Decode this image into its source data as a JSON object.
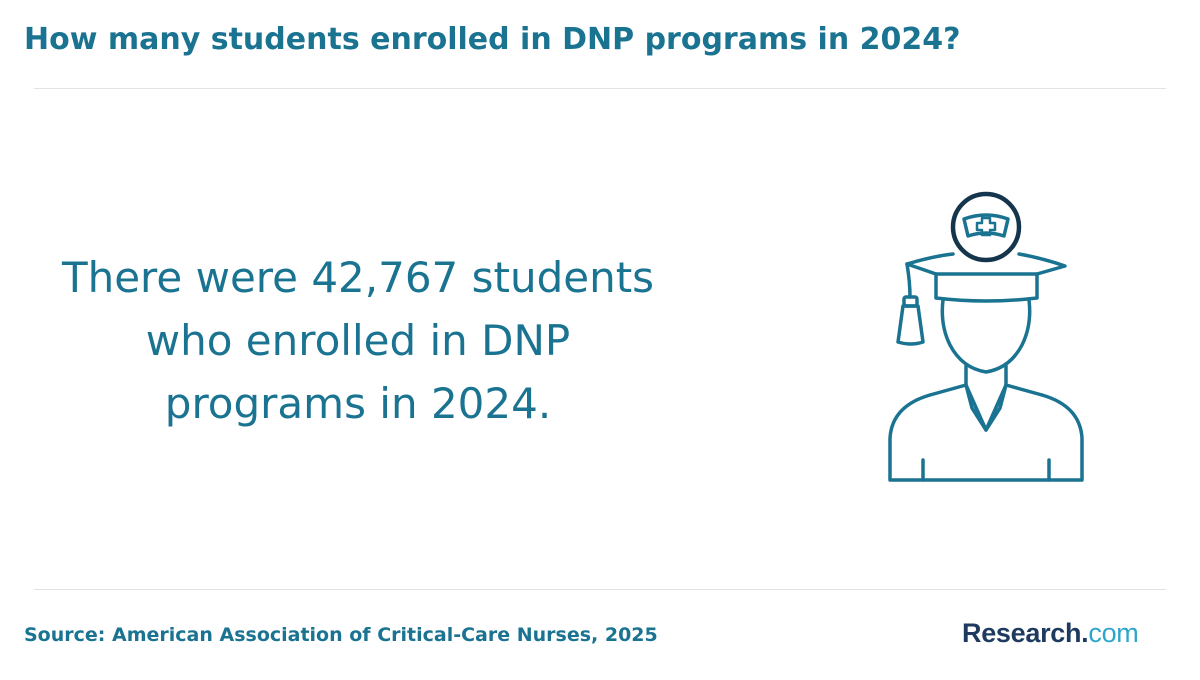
{
  "header": {
    "title": "How many students enrolled in DNP programs in 2024?"
  },
  "main": {
    "statement": "There were 42,767 students who enrolled in DNP programs in 2024.",
    "illustration_icon": "graduate-nurse-icon"
  },
  "footer": {
    "source": "Source: American Association of Critical-Care Nurses, 2025",
    "logo_main": "Research.",
    "logo_tld": "com"
  },
  "colors": {
    "accent": "#1a7391",
    "divider": "#e3e3e3",
    "logo_dark": "#1e3a5f",
    "logo_light": "#2fa6c9",
    "icon_ring": "#15354d"
  }
}
